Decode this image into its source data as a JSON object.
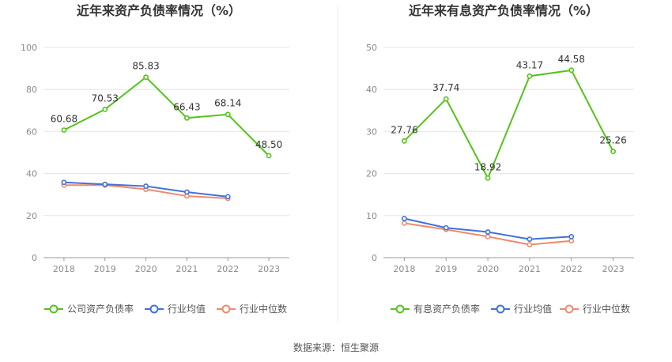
{
  "chart_data": [
    {
      "type": "line",
      "title": "近年来资产负债率情况（%）",
      "xlabel": "",
      "ylabel": "",
      "categories": [
        "2018",
        "2019",
        "2020",
        "2021",
        "2022",
        "2023"
      ],
      "ylim": [
        0,
        100
      ],
      "yticks": [
        0,
        20,
        40,
        60,
        80,
        100
      ],
      "grid": true,
      "legend_position": "bottom",
      "series": [
        {
          "name": "公司资产负债率",
          "color": "#52c41a",
          "values": [
            60.68,
            70.53,
            85.83,
            66.43,
            68.14,
            48.5
          ],
          "labels": [
            "60.68",
            "70.53",
            "85.83",
            "66.43",
            "68.14",
            "48.50"
          ]
        },
        {
          "name": "行业均值",
          "color": "#3f72d9",
          "values": [
            35.8,
            34.9,
            34.0,
            31.2,
            29.0,
            null
          ]
        },
        {
          "name": "行业中位数",
          "color": "#f08a6a",
          "values": [
            34.5,
            34.5,
            32.5,
            29.3,
            28.2,
            null
          ]
        }
      ]
    },
    {
      "type": "line",
      "title": "近年来有息资产负债率情况（%）",
      "xlabel": "",
      "ylabel": "",
      "categories": [
        "2018",
        "2019",
        "2020",
        "2021",
        "2022",
        "2023"
      ],
      "ylim": [
        0,
        50
      ],
      "yticks": [
        0,
        10,
        20,
        30,
        40,
        50
      ],
      "grid": true,
      "legend_position": "bottom",
      "series": [
        {
          "name": "有息资产负债率",
          "color": "#52c41a",
          "values": [
            27.76,
            37.74,
            18.92,
            43.17,
            44.58,
            25.26
          ],
          "labels": [
            "27.76",
            "37.74",
            "18.92",
            "43.17",
            "44.58",
            "25.26"
          ]
        },
        {
          "name": "行业均值",
          "color": "#3f72d9",
          "values": [
            9.3,
            7.1,
            6.1,
            4.4,
            5.0,
            null
          ]
        },
        {
          "name": "行业中位数",
          "color": "#f08a6a",
          "values": [
            8.2,
            6.7,
            5.0,
            3.1,
            4.0,
            null
          ]
        }
      ]
    }
  ],
  "footer": {
    "source": "数据来源：恒生聚源"
  }
}
